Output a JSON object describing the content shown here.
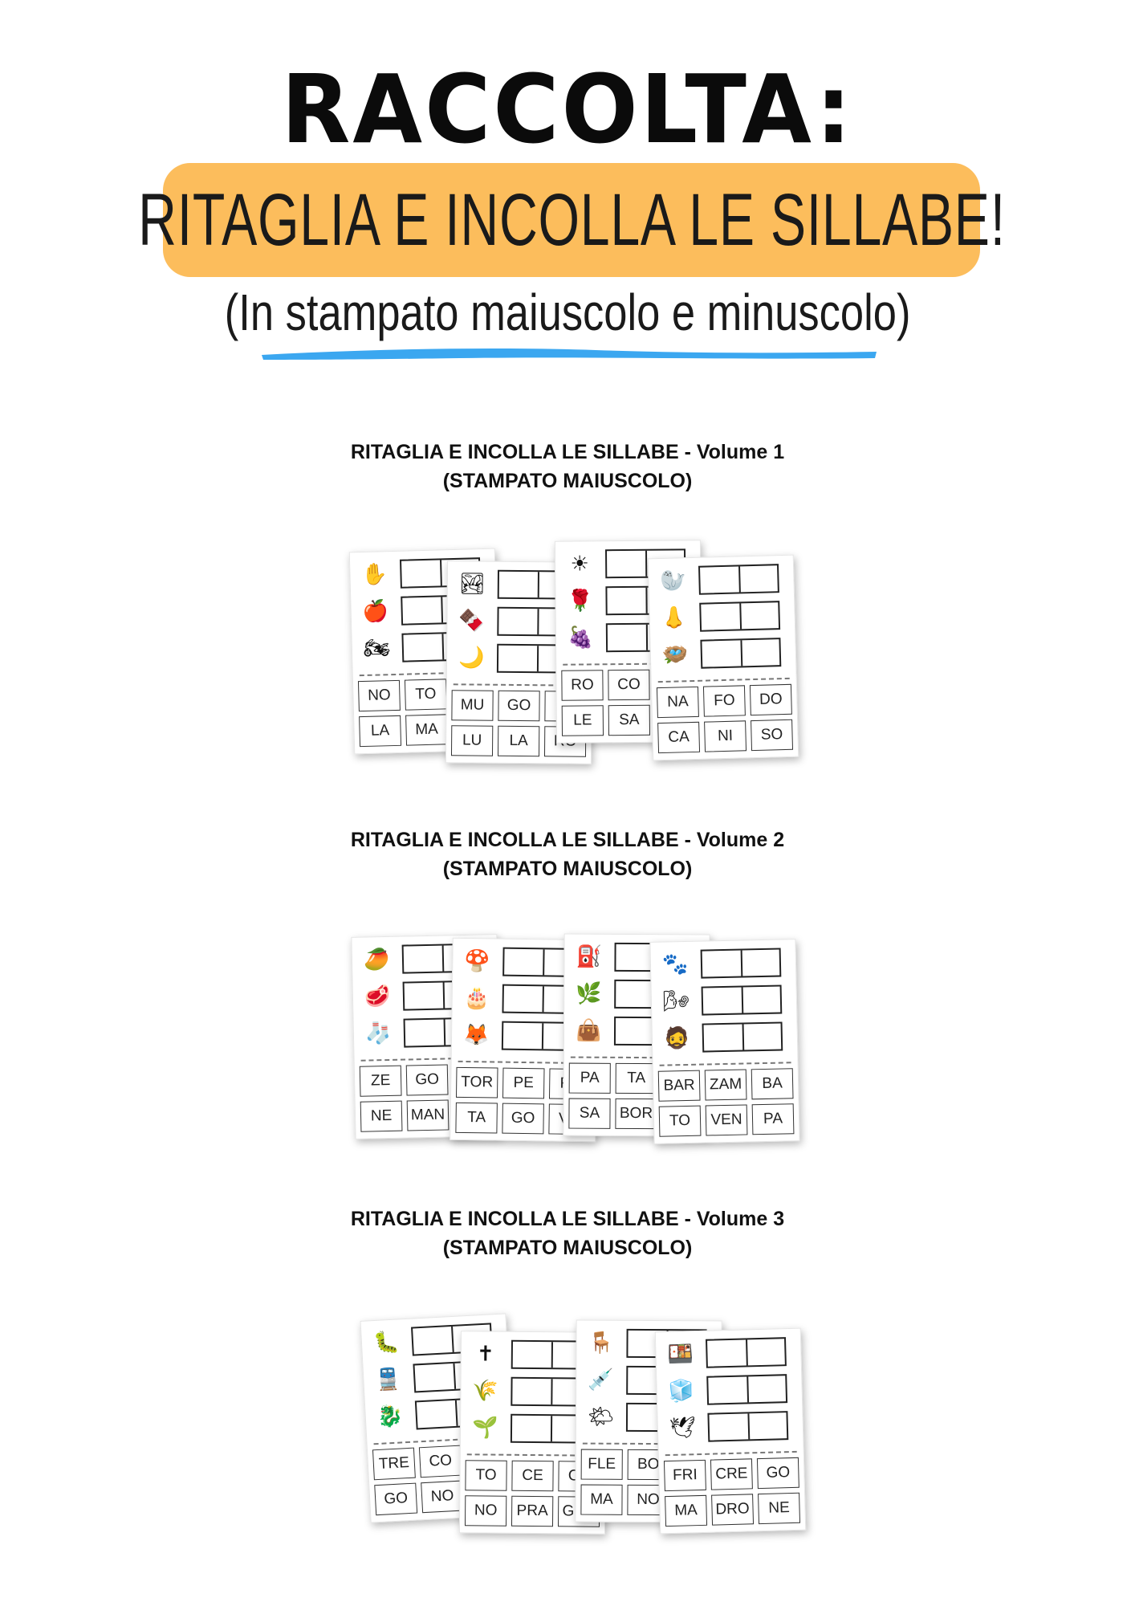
{
  "header": {
    "title": "RACCOLTA:",
    "banner": "RITAGLIA E INCOLLA LE SILLABE!",
    "subtitle": "(In stampato maiuscolo e minuscolo)"
  },
  "colors": {
    "banner": "#fcbd5c",
    "underline": "#3ba7f0"
  },
  "volumes": [
    {
      "line1": "RITAGLIA E INCOLLA LE SILLABE - Volume 1",
      "line2": "(STAMPATO MAIUSCOLO)",
      "sheets": [
        {
          "pictures": [
            "✋",
            "🍎",
            "🏍"
          ],
          "tiles": [
            "NO",
            "TO",
            "",
            "LA",
            "MA",
            ""
          ]
        },
        {
          "pictures": [
            "🏞",
            "🍫",
            "🌙"
          ],
          "tiles": [
            "MU",
            "GO",
            "N",
            "LU",
            "LA",
            "RO"
          ]
        },
        {
          "pictures": [
            "☀",
            "🌹",
            "🍇"
          ],
          "tiles": [
            "RO",
            "CO",
            "",
            "LE",
            "SA",
            ""
          ]
        },
        {
          "pictures": [
            "🦭",
            "👃",
            "🪺"
          ],
          "tiles": [
            "NA",
            "FO",
            "DO",
            "CA",
            "NI",
            "SO"
          ]
        }
      ]
    },
    {
      "line1": "RITAGLIA E INCOLLA LE SILLABE - Volume 2",
      "line2": "(STAMPATO MAIUSCOLO)",
      "sheets": [
        {
          "pictures": [
            "🥭",
            "🥩",
            "🧦"
          ],
          "tiles": [
            "ZE",
            "GO",
            "",
            "NE",
            "MAN",
            ""
          ]
        },
        {
          "pictures": [
            "🍄",
            "🎂",
            "🦊"
          ],
          "tiles": [
            "TOR",
            "PE",
            "FU",
            "TA",
            "GO",
            "VO"
          ]
        },
        {
          "pictures": [
            "⛽",
            "🌿",
            "👜"
          ],
          "tiles": [
            "PA",
            "TA",
            "",
            "SA",
            "BOR",
            ""
          ]
        },
        {
          "pictures": [
            "🐾",
            "🌬",
            "🧔"
          ],
          "tiles": [
            "BAR",
            "ZAM",
            "BA",
            "TO",
            "VEN",
            "PA"
          ]
        }
      ]
    },
    {
      "line1": "RITAGLIA E INCOLLA LE SILLABE - Volume 3",
      "line2": "(STAMPATO MAIUSCOLO)",
      "sheets": [
        {
          "pictures": [
            "🐛",
            "🚆",
            "🐉"
          ],
          "tiles": [
            "TRE",
            "CO",
            "",
            "GO",
            "NO",
            ""
          ]
        },
        {
          "pictures": [
            "✝",
            "🌾",
            "🌱"
          ],
          "tiles": [
            "TO",
            "CE",
            "CR",
            "NO",
            "PRA",
            "GRA"
          ]
        },
        {
          "pictures": [
            "🪑",
            "💉",
            "🌤"
          ],
          "tiles": [
            "FLE",
            "BO",
            "",
            "MA",
            "NO",
            ""
          ]
        },
        {
          "pictures": [
            "🍱",
            "🧊",
            "🕊"
          ],
          "tiles": [
            "FRI",
            "CRE",
            "GO",
            "MA",
            "DRO",
            "NE"
          ]
        }
      ]
    }
  ]
}
